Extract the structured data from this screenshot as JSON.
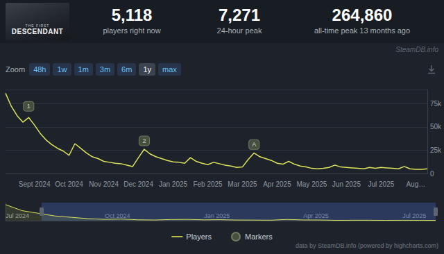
{
  "header": {
    "logo": {
      "small": "THE FIRST",
      "large": "DESCENDANT"
    },
    "stats": [
      {
        "value": "5,118",
        "label": "players right now"
      },
      {
        "value": "7,271",
        "label": "24-hour peak"
      },
      {
        "value": "264,860",
        "label": "all-time peak 13 months ago"
      }
    ],
    "source": "SteamDB.info"
  },
  "zoom": {
    "label": "Zoom",
    "buttons": [
      "48h",
      "1w",
      "1m",
      "3m",
      "6m",
      "1y",
      "max"
    ],
    "active": "1y"
  },
  "chart_data": [
    {
      "type": "line",
      "categories": [
        null,
        null,
        null,
        null,
        null,
        "Sept 2024",
        null,
        null,
        null,
        null,
        null,
        "Oct 2024",
        null,
        null,
        null,
        null,
        null,
        "Nov 2024",
        null,
        null,
        null,
        null,
        null,
        "Dec 2024",
        null,
        null,
        null,
        null,
        null,
        "Jan 2025",
        null,
        null,
        null,
        null,
        null,
        "Feb 2025",
        null,
        null,
        null,
        null,
        null,
        "Mar 2025",
        null,
        null,
        null,
        null,
        null,
        "Apr 2025",
        null,
        null,
        null,
        null,
        null,
        "May 2025",
        null,
        null,
        null,
        null,
        null,
        "Jun 2025",
        null,
        null,
        null,
        null,
        null,
        "Jul 2025",
        null,
        null,
        null,
        null,
        null,
        "Aug…",
        null,
        null
      ],
      "series": [
        {
          "name": "Players",
          "type": "line",
          "color": "#dde35b",
          "values": [
            86000,
            72000,
            62000,
            55000,
            60000,
            52000,
            43000,
            36000,
            31000,
            27000,
            24000,
            19500,
            32000,
            27000,
            22000,
            18000,
            16000,
            13000,
            12000,
            11000,
            10500,
            9000,
            7500,
            17000,
            26000,
            21000,
            18000,
            16000,
            14000,
            12500,
            12000,
            11000,
            17000,
            13000,
            11000,
            9500,
            12000,
            10500,
            9000,
            8000,
            6500,
            7000,
            15000,
            22000,
            18000,
            16000,
            14000,
            11000,
            10000,
            13000,
            10000,
            8000,
            7000,
            5500,
            5000,
            5500,
            6500,
            9000,
            7000,
            6500,
            6000,
            5500,
            5000,
            6500,
            5500,
            6500,
            6000,
            5500,
            5000,
            7500,
            5000,
            4500,
            4500,
            5000
          ]
        },
        {
          "name": "Markers",
          "type": "scatter",
          "color": "#4f5a45"
        }
      ],
      "annotations": [
        {
          "text": "1",
          "index": 4,
          "y": 72000
        },
        {
          "text": "2",
          "index": 24,
          "y": 35000
        },
        {
          "text": "A",
          "index": 43,
          "y": 31000
        }
      ],
      "ylim": [
        0,
        90000
      ],
      "yticks": [
        0,
        {
          "value": 25000,
          "label": "25k"
        },
        {
          "value": 50000,
          "label": "50k"
        },
        {
          "value": 75000,
          "label": "75k"
        }
      ],
      "grid": true,
      "legend": "bottom"
    },
    {
      "type": "line",
      "categories": [
        "Jul 2024",
        null,
        null,
        null,
        null,
        null,
        "Oct 2024",
        null,
        null,
        null,
        null,
        null,
        "Jan 2025",
        null,
        null,
        null,
        null,
        null,
        "Apr 2025",
        null,
        null,
        null,
        null,
        null,
        "Jul 2025",
        null,
        null
      ],
      "values": [
        240000,
        150000,
        110000,
        70000,
        50000,
        30000,
        20000,
        25000,
        13000,
        10000,
        17000,
        19000,
        12500,
        15000,
        9500,
        9000,
        7000,
        18000,
        11000,
        10000,
        5500,
        6500,
        6500,
        5000,
        6500,
        5000,
        4500
      ],
      "color": "#dde35b",
      "ylim": [
        0,
        270000
      ],
      "tick_labels": "x"
    }
  ],
  "credits": "data by SteamDB.info (powered by highcharts.com)"
}
